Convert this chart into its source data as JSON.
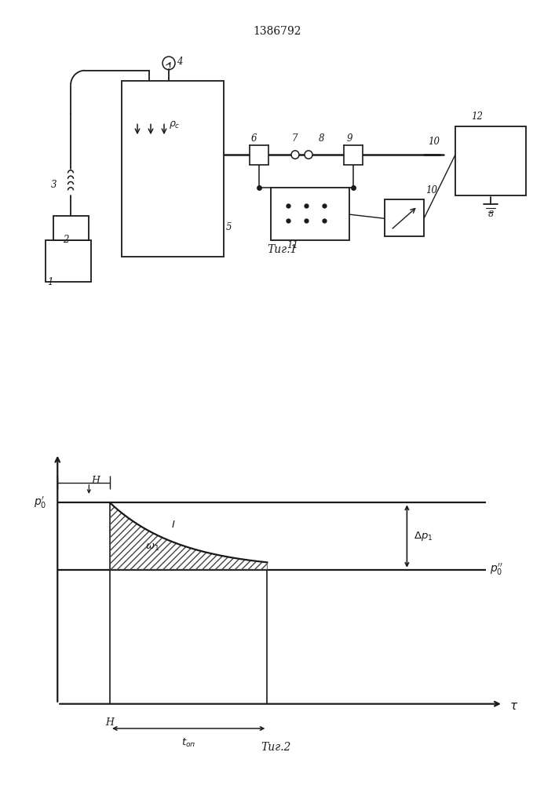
{
  "title": "1386792",
  "fig1_label": "Τиг.1",
  "fig2_label": "Τиг.2",
  "line_color": "#1a1a1a",
  "labels": {
    "1": "1",
    "2": "2",
    "3": "3",
    "4": "4",
    "5": "5",
    "6": "6",
    "7": "7",
    "8": "8",
    "9": "9",
    "10": "10",
    "11": "11",
    "12": "12"
  }
}
